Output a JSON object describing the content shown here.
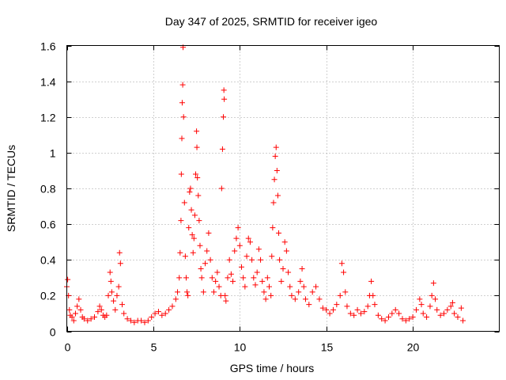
{
  "chart_data": {
    "type": "scatter",
    "title": "Day 347 of 2025, SRMTID for receiver igeo",
    "xlabel": "GPS time / hours",
    "ylabel": "SRMTID / TECUs",
    "xlim": [
      0,
      25
    ],
    "ylim": [
      0,
      1.6
    ],
    "xticks": [
      0,
      5,
      10,
      15,
      20
    ],
    "xtick_labels": [
      "0",
      "5",
      "10",
      "15",
      "20"
    ],
    "yticks": [
      0,
      0.2,
      0.4,
      0.6,
      0.8,
      1.0,
      1.2,
      1.4,
      1.6
    ],
    "ytick_labels": [
      "0",
      "0.2",
      "0.4",
      "0.6",
      "0.8",
      "1",
      "1.2",
      "1.4",
      "1.6"
    ],
    "grid": true,
    "marker": "plus",
    "color": "#ff0000",
    "series": [
      {
        "name": "SRMTID",
        "points": [
          [
            0.0,
            0.25
          ],
          [
            0.05,
            0.29
          ],
          [
            0.1,
            0.2
          ],
          [
            0.15,
            0.12
          ],
          [
            0.2,
            0.09
          ],
          [
            0.3,
            0.08
          ],
          [
            0.4,
            0.06
          ],
          [
            0.5,
            0.1
          ],
          [
            0.6,
            0.14
          ],
          [
            0.7,
            0.18
          ],
          [
            0.8,
            0.12
          ],
          [
            0.9,
            0.08
          ],
          [
            1.0,
            0.07
          ],
          [
            1.2,
            0.06
          ],
          [
            1.4,
            0.07
          ],
          [
            1.6,
            0.08
          ],
          [
            1.8,
            0.11
          ],
          [
            1.9,
            0.14
          ],
          [
            2.0,
            0.12
          ],
          [
            2.1,
            0.09
          ],
          [
            2.2,
            0.08
          ],
          [
            2.3,
            0.09
          ],
          [
            2.4,
            0.2
          ],
          [
            2.5,
            0.33
          ],
          [
            2.55,
            0.28
          ],
          [
            2.6,
            0.22
          ],
          [
            2.7,
            0.17
          ],
          [
            2.8,
            0.12
          ],
          [
            2.9,
            0.2
          ],
          [
            3.0,
            0.25
          ],
          [
            3.05,
            0.44
          ],
          [
            3.1,
            0.38
          ],
          [
            3.2,
            0.15
          ],
          [
            3.3,
            0.1
          ],
          [
            3.5,
            0.07
          ],
          [
            3.7,
            0.06
          ],
          [
            3.9,
            0.05
          ],
          [
            4.1,
            0.06
          ],
          [
            4.3,
            0.06
          ],
          [
            4.5,
            0.05
          ],
          [
            4.7,
            0.06
          ],
          [
            4.9,
            0.08
          ],
          [
            5.1,
            0.1
          ],
          [
            5.3,
            0.11
          ],
          [
            5.5,
            0.09
          ],
          [
            5.7,
            0.1
          ],
          [
            5.9,
            0.12
          ],
          [
            6.1,
            0.14
          ],
          [
            6.3,
            0.18
          ],
          [
            6.4,
            0.22
          ],
          [
            6.5,
            0.3
          ],
          [
            6.55,
            0.44
          ],
          [
            6.6,
            0.62
          ],
          [
            6.62,
            0.88
          ],
          [
            6.65,
            1.08
          ],
          [
            6.67,
            1.28
          ],
          [
            6.7,
            1.38
          ],
          [
            6.72,
            1.59
          ],
          [
            6.75,
            1.2
          ],
          [
            6.8,
            0.72
          ],
          [
            6.85,
            0.42
          ],
          [
            6.9,
            0.3
          ],
          [
            6.95,
            0.22
          ],
          [
            7.0,
            0.2
          ],
          [
            7.05,
            0.58
          ],
          [
            7.1,
            0.78
          ],
          [
            7.15,
            0.8
          ],
          [
            7.2,
            0.68
          ],
          [
            7.25,
            0.54
          ],
          [
            7.3,
            0.44
          ],
          [
            7.35,
            0.52
          ],
          [
            7.4,
            0.65
          ],
          [
            7.45,
            0.88
          ],
          [
            7.5,
            1.12
          ],
          [
            7.52,
            1.03
          ],
          [
            7.55,
            0.86
          ],
          [
            7.6,
            0.76
          ],
          [
            7.65,
            0.62
          ],
          [
            7.7,
            0.48
          ],
          [
            7.75,
            0.35
          ],
          [
            7.8,
            0.3
          ],
          [
            7.9,
            0.22
          ],
          [
            8.0,
            0.38
          ],
          [
            8.1,
            0.45
          ],
          [
            8.2,
            0.55
          ],
          [
            8.3,
            0.4
          ],
          [
            8.4,
            0.3
          ],
          [
            8.5,
            0.22
          ],
          [
            8.6,
            0.28
          ],
          [
            8.7,
            0.33
          ],
          [
            8.8,
            0.25
          ],
          [
            8.9,
            0.2
          ],
          [
            8.95,
            0.8
          ],
          [
            9.0,
            1.02
          ],
          [
            9.05,
            1.2
          ],
          [
            9.08,
            1.35
          ],
          [
            9.1,
            1.3
          ],
          [
            9.15,
            0.2
          ],
          [
            9.2,
            0.17
          ],
          [
            9.3,
            0.3
          ],
          [
            9.4,
            0.4
          ],
          [
            9.5,
            0.32
          ],
          [
            9.6,
            0.28
          ],
          [
            9.7,
            0.45
          ],
          [
            9.8,
            0.52
          ],
          [
            9.9,
            0.58
          ],
          [
            10.0,
            0.48
          ],
          [
            10.1,
            0.36
          ],
          [
            10.2,
            0.3
          ],
          [
            10.3,
            0.25
          ],
          [
            10.4,
            0.42
          ],
          [
            10.5,
            0.52
          ],
          [
            10.6,
            0.5
          ],
          [
            10.7,
            0.4
          ],
          [
            10.8,
            0.3
          ],
          [
            10.9,
            0.26
          ],
          [
            11.0,
            0.33
          ],
          [
            11.1,
            0.46
          ],
          [
            11.2,
            0.4
          ],
          [
            11.3,
            0.28
          ],
          [
            11.4,
            0.22
          ],
          [
            11.5,
            0.18
          ],
          [
            11.6,
            0.3
          ],
          [
            11.7,
            0.25
          ],
          [
            11.8,
            0.2
          ],
          [
            11.85,
            0.42
          ],
          [
            11.9,
            0.58
          ],
          [
            11.95,
            0.72
          ],
          [
            12.0,
            0.85
          ],
          [
            12.05,
            0.98
          ],
          [
            12.1,
            1.03
          ],
          [
            12.15,
            0.9
          ],
          [
            12.2,
            0.76
          ],
          [
            12.25,
            0.55
          ],
          [
            12.3,
            0.4
          ],
          [
            12.4,
            0.28
          ],
          [
            12.5,
            0.35
          ],
          [
            12.6,
            0.5
          ],
          [
            12.7,
            0.45
          ],
          [
            12.8,
            0.33
          ],
          [
            12.9,
            0.25
          ],
          [
            13.0,
            0.2
          ],
          [
            13.2,
            0.18
          ],
          [
            13.4,
            0.22
          ],
          [
            13.5,
            0.28
          ],
          [
            13.6,
            0.35
          ],
          [
            13.7,
            0.25
          ],
          [
            13.8,
            0.18
          ],
          [
            14.0,
            0.15
          ],
          [
            14.2,
            0.22
          ],
          [
            14.4,
            0.25
          ],
          [
            14.6,
            0.18
          ],
          [
            14.8,
            0.13
          ],
          [
            15.0,
            0.12
          ],
          [
            15.2,
            0.1
          ],
          [
            15.4,
            0.12
          ],
          [
            15.6,
            0.15
          ],
          [
            15.8,
            0.2
          ],
          [
            15.9,
            0.38
          ],
          [
            16.0,
            0.33
          ],
          [
            16.1,
            0.22
          ],
          [
            16.2,
            0.14
          ],
          [
            16.4,
            0.1
          ],
          [
            16.6,
            0.09
          ],
          [
            16.8,
            0.12
          ],
          [
            17.0,
            0.1
          ],
          [
            17.2,
            0.11
          ],
          [
            17.4,
            0.14
          ],
          [
            17.5,
            0.2
          ],
          [
            17.6,
            0.28
          ],
          [
            17.7,
            0.2
          ],
          [
            17.8,
            0.15
          ],
          [
            18.0,
            0.09
          ],
          [
            18.2,
            0.07
          ],
          [
            18.4,
            0.06
          ],
          [
            18.6,
            0.08
          ],
          [
            18.8,
            0.1
          ],
          [
            19.0,
            0.12
          ],
          [
            19.2,
            0.1
          ],
          [
            19.4,
            0.07
          ],
          [
            19.6,
            0.06
          ],
          [
            19.8,
            0.07
          ],
          [
            20.0,
            0.08
          ],
          [
            20.2,
            0.12
          ],
          [
            20.4,
            0.18
          ],
          [
            20.5,
            0.15
          ],
          [
            20.6,
            0.1
          ],
          [
            20.8,
            0.08
          ],
          [
            21.0,
            0.14
          ],
          [
            21.1,
            0.2
          ],
          [
            21.2,
            0.27
          ],
          [
            21.3,
            0.18
          ],
          [
            21.4,
            0.12
          ],
          [
            21.6,
            0.09
          ],
          [
            21.8,
            0.1
          ],
          [
            22.0,
            0.12
          ],
          [
            22.2,
            0.14
          ],
          [
            22.3,
            0.16
          ],
          [
            22.4,
            0.1
          ],
          [
            22.6,
            0.08
          ],
          [
            22.8,
            0.13
          ],
          [
            22.9,
            0.06
          ]
        ]
      }
    ]
  }
}
